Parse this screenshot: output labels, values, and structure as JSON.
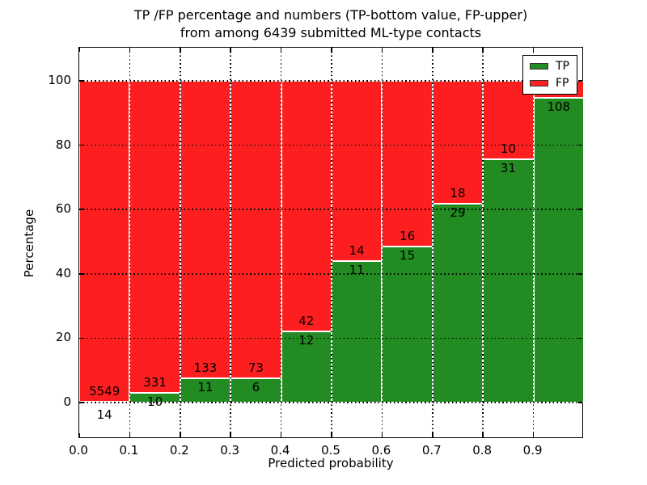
{
  "chart_data": {
    "type": "bar",
    "subtype": "stacked-percentage-histogram",
    "title_line1": "TP /FP percentage and numbers (TP-bottom value, FP-upper)",
    "title_line2": "from among 6439 submitted ML-type contacts",
    "xlabel": "Predicted probability",
    "ylabel": "Percentage",
    "total_contacts": 6439,
    "xlim": [
      0.0,
      1.0
    ],
    "ylim": [
      -11.3,
      110.3
    ],
    "xticks": [
      "0.0",
      "0.1",
      "0.2",
      "0.3",
      "0.4",
      "0.5",
      "0.6",
      "0.7",
      "0.8",
      "0.9"
    ],
    "yticks": [
      0,
      20,
      40,
      60,
      80,
      100
    ],
    "grid": "dotted-black",
    "bar_edge_color": "#ffffff",
    "legend": {
      "position": "upper-right",
      "items": [
        {
          "label": "TP",
          "color": "#228b22"
        },
        {
          "label": "FP",
          "color": "#fd1f1f"
        }
      ]
    },
    "bins": [
      {
        "x0": 0.0,
        "x1": 0.1,
        "tp_count": 14,
        "fp_count": 5549,
        "tp_pct": 0.25,
        "tp_label_below_axis": true
      },
      {
        "x0": 0.1,
        "x1": 0.2,
        "tp_count": 10,
        "fp_count": 331,
        "tp_pct": 2.93,
        "tp_label_below_axis": false
      },
      {
        "x0": 0.2,
        "x1": 0.3,
        "tp_count": 11,
        "fp_count": 133,
        "tp_pct": 7.64,
        "tp_label_below_axis": false
      },
      {
        "x0": 0.3,
        "x1": 0.4,
        "tp_count": 6,
        "fp_count": 73,
        "tp_pct": 7.59,
        "tp_label_below_axis": false
      },
      {
        "x0": 0.4,
        "x1": 0.5,
        "tp_count": 12,
        "fp_count": 42,
        "tp_pct": 22.22,
        "tp_label_below_axis": false
      },
      {
        "x0": 0.5,
        "x1": 0.6,
        "tp_count": 11,
        "fp_count": 14,
        "tp_pct": 44.0,
        "tp_label_below_axis": false
      },
      {
        "x0": 0.6,
        "x1": 0.7,
        "tp_count": 15,
        "fp_count": 16,
        "tp_pct": 48.39,
        "tp_label_below_axis": false
      },
      {
        "x0": 0.7,
        "x1": 0.8,
        "tp_count": 29,
        "fp_count": 18,
        "tp_pct": 61.7,
        "tp_label_below_axis": false
      },
      {
        "x0": 0.8,
        "x1": 0.9,
        "tp_count": 31,
        "fp_count": 10,
        "tp_pct": 75.61,
        "tp_label_below_axis": false
      },
      {
        "x0": 0.9,
        "x1": 1.0,
        "tp_count": 108,
        "fp_count": null,
        "tp_pct": 94.7,
        "tp_label_below_axis": false,
        "fp_label_hidden_by_legend": true
      }
    ]
  }
}
